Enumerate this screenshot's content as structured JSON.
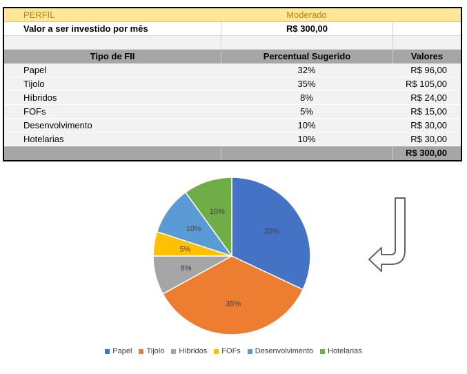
{
  "table": {
    "perfil_label": "PERFIL",
    "perfil_value": "Moderado",
    "invest_label": "Valor a ser investido por mês",
    "invest_value": "R$ 300,00",
    "headers": [
      "Tipo de FII",
      "Percentual Sugerido",
      "Valores"
    ],
    "rows": [
      {
        "tipo": "Papel",
        "percentual": "32%",
        "valor": "R$ 96,00"
      },
      {
        "tipo": "Tijolo",
        "percentual": "35%",
        "valor": "R$ 105,00"
      },
      {
        "tipo": "Híbridos",
        "percentual": "8%",
        "valor": "R$ 24,00"
      },
      {
        "tipo": "FOFs",
        "percentual": "5%",
        "valor": "R$ 15,00"
      },
      {
        "tipo": "Desenvolvimento",
        "percentual": "10%",
        "valor": "R$ 30,00"
      },
      {
        "tipo": "Hotelarias",
        "percentual": "10%",
        "valor": "R$ 30,00"
      }
    ],
    "total": "R$ 300,00"
  },
  "chart_data": {
    "type": "pie",
    "title": "",
    "categories": [
      "Papel",
      "Tijolo",
      "Híbridos",
      "FOFs",
      "Desenvolvimento",
      "Hotelarias"
    ],
    "values": [
      32,
      35,
      8,
      5,
      10,
      10
    ],
    "labels": [
      "32%",
      "35%",
      "8%",
      "5%",
      "10%",
      "10%"
    ],
    "colors": [
      "#4472c4",
      "#ed7d31",
      "#a5a5a5",
      "#ffc000",
      "#5b9bd5",
      "#70ad47"
    ],
    "legend": "bottom"
  },
  "colors": {
    "perfil_bg": "#ffe699",
    "header_bg": "#a6a6a6",
    "row_bg": "#f2f2f2"
  }
}
